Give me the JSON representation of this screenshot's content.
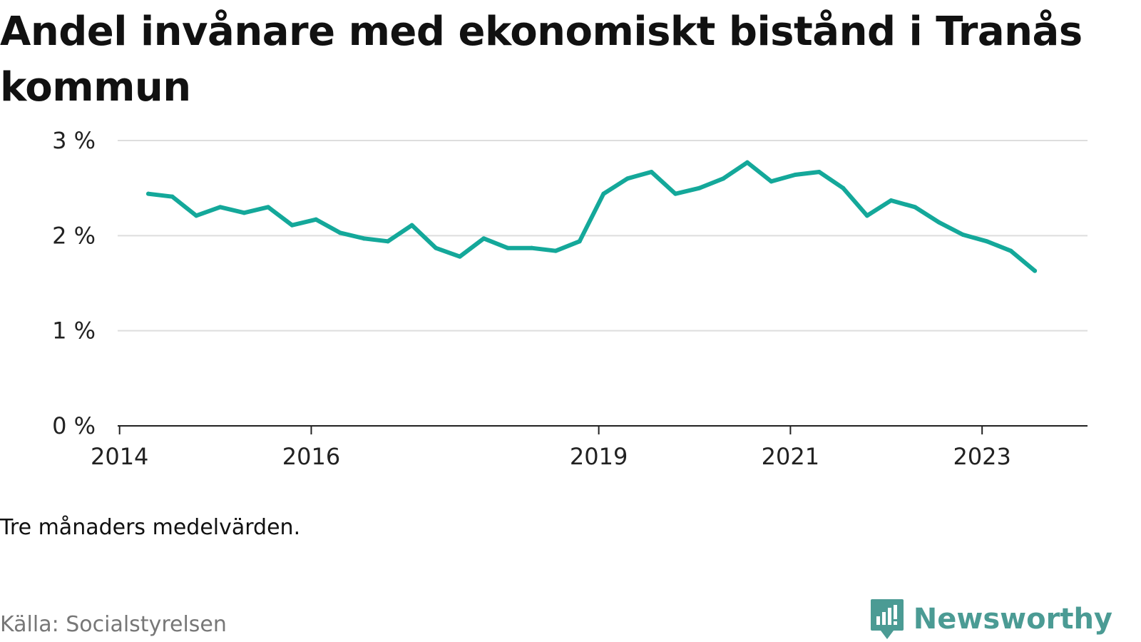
{
  "title": "Andel invånare med ekonomiskt bistånd i Tranås kommun",
  "note": "Tre månaders medelvärden.",
  "source": "Källa: Socialstyrelsen",
  "brand": "Newsworthy",
  "colors": {
    "line": "#14a89a",
    "grid": "#dddddd",
    "axis": "#222222",
    "brand": "#4b9b94"
  },
  "chart_data": {
    "type": "line",
    "title": "Andel invånare med ekonomiskt bistånd i Tranås kommun",
    "xlabel": "",
    "ylabel": "",
    "xlim": [
      2013.98,
      2024.1
    ],
    "ylim": [
      0,
      3
    ],
    "yticks": [
      0,
      1,
      2,
      3
    ],
    "ytick_labels": [
      "0 %",
      "1 %",
      "2 %",
      "3 %"
    ],
    "xticks": [
      2014,
      2016,
      2019,
      2021,
      2023
    ],
    "xtick_labels": [
      "2014",
      "2016",
      "2019",
      "2021",
      "2023"
    ],
    "grid": true,
    "series": [
      {
        "x": [
          2014.3,
          2014.55,
          2014.8,
          2015.05,
          2015.3,
          2015.55,
          2015.8,
          2016.05,
          2016.3,
          2016.55,
          2016.8,
          2017.05,
          2017.3,
          2017.55,
          2017.8,
          2018.05,
          2018.3,
          2018.55,
          2018.8,
          2019.05,
          2019.3,
          2019.55,
          2019.8,
          2020.05,
          2020.3,
          2020.55,
          2020.8,
          2021.05,
          2021.3,
          2021.55,
          2021.8,
          2022.05,
          2022.3,
          2022.55,
          2022.8,
          2023.05,
          2023.3,
          2023.55
        ],
        "values": [
          2.44,
          2.41,
          2.21,
          2.3,
          2.24,
          2.3,
          2.11,
          2.17,
          2.03,
          1.97,
          1.94,
          2.11,
          1.87,
          1.78,
          1.97,
          1.87,
          1.87,
          1.84,
          1.94,
          2.44,
          2.6,
          2.67,
          2.44,
          2.5,
          2.6,
          2.77,
          2.57,
          2.64,
          2.67,
          2.5,
          2.21,
          2.37,
          2.3,
          2.14,
          2.01,
          1.94,
          1.84,
          1.63
        ]
      }
    ]
  }
}
